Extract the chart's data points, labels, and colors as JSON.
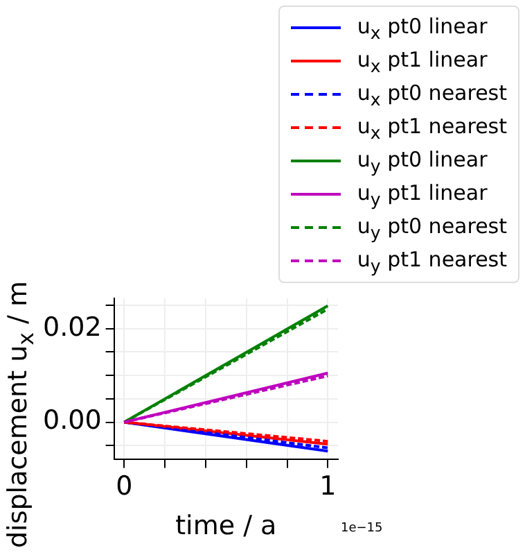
{
  "chart_data": {
    "type": "line",
    "xlabel": "time / a",
    "ylabel": "displacement u$_{x}$ / m",
    "x": [
      0,
      1
    ],
    "series": [
      {
        "name": "u$_{x}$ pt0 linear",
        "color": "#0000ff",
        "values": [
          0,
          -0.0062
        ],
        "line_style": "solid"
      },
      {
        "name": "u$_{x}$ pt1 linear",
        "color": "#ff0000",
        "values": [
          0,
          -0.0047
        ],
        "line_style": "solid"
      },
      {
        "name": "u$_{x}$ pt0 nearest",
        "color": "#0000ff",
        "values": [
          0,
          -0.0055
        ],
        "line_style": "dashed"
      },
      {
        "name": "u$_{x}$ pt1 nearest",
        "color": "#ff0000",
        "values": [
          0,
          -0.0041
        ],
        "line_style": "dashed"
      },
      {
        "name": "u$_{y}$ pt0 linear",
        "color": "#008000",
        "values": [
          0,
          0.0249
        ],
        "line_style": "solid"
      },
      {
        "name": "u$_{y}$ pt1 linear",
        "color": "#bf00bf",
        "values": [
          0,
          0.0105
        ],
        "line_style": "solid"
      },
      {
        "name": "u$_{y}$ pt0 nearest",
        "color": "#008000",
        "values": [
          0,
          0.0242
        ],
        "line_style": "dashed"
      },
      {
        "name": "u$_{y}$ pt1 nearest",
        "color": "#bf00bf",
        "values": [
          0,
          0.0099
        ],
        "line_style": "dashed"
      }
    ],
    "xlim": [
      -0.05,
      1.05
    ],
    "xticks": [
      0,
      {
        "value": 0.2,
        "label": null
      },
      {
        "value": 0.4,
        "label": null
      },
      {
        "value": 0.6,
        "label": null
      },
      {
        "value": 0.8,
        "label": null
      },
      1
    ],
    "ylim": [
      -0.008,
      0.0265
    ],
    "yticks": [
      {
        "value": -0.005,
        "label": null
      },
      {
        "value": 0,
        "label": "0.00"
      },
      {
        "value": 0.005,
        "label": null
      },
      {
        "value": 0.01,
        "label": null
      },
      {
        "value": 0.015,
        "label": null
      },
      {
        "value": 0.02,
        "label": "0.02"
      },
      {
        "value": 0.025,
        "label": null
      }
    ],
    "annotations": [
      "1e−15"
    ],
    "grid": true,
    "legend": "top right",
    "marker": "none"
  }
}
